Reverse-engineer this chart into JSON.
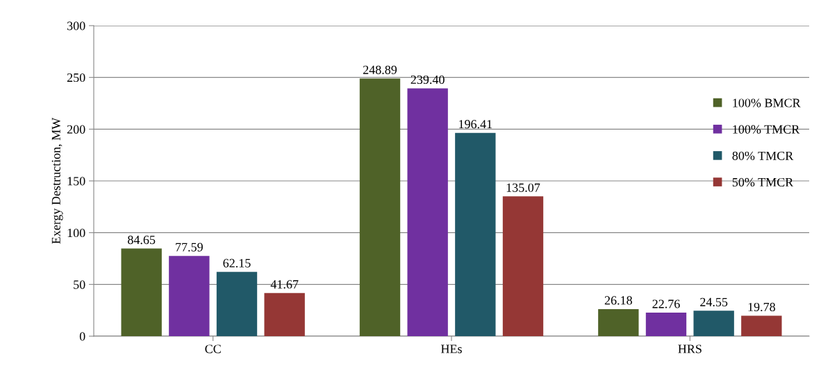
{
  "chart_data": {
    "type": "bar",
    "ylabel": "Exergy Destruction, MW",
    "categories": [
      "CC",
      "HEs",
      "HRS"
    ],
    "series": [
      {
        "name": "100% BMCR",
        "color": "#4f6228",
        "values": [
          84.65,
          248.89,
          26.18
        ]
      },
      {
        "name": "100% TMCR",
        "color": "#7030a0",
        "values": [
          77.59,
          239.4,
          22.76
        ],
        "value_labels": [
          "77.59",
          "239.40",
          "22.76"
        ]
      },
      {
        "name": "80% TMCR",
        "color": "#215968",
        "values": [
          62.15,
          196.41,
          24.55
        ]
      },
      {
        "name": "50% TMCR",
        "color": "#953735",
        "values": [
          41.67,
          135.07,
          19.78
        ]
      }
    ],
    "ylim": [
      0,
      300
    ],
    "yticks": [
      0,
      50,
      100,
      150,
      200,
      250,
      300
    ],
    "grid": "y",
    "legend": "right",
    "data_labels": true
  }
}
